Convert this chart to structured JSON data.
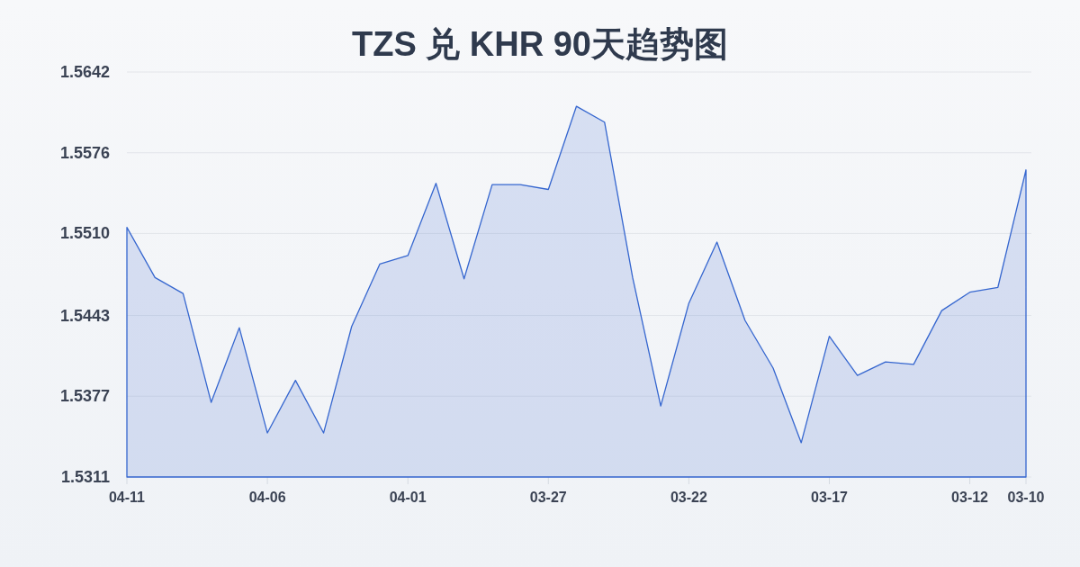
{
  "chart_data": {
    "type": "area",
    "title": "TZS 兑 KHR 90天趋势图",
    "categories": [
      "04-11",
      null,
      null,
      null,
      null,
      "04-06",
      null,
      null,
      null,
      null,
      "04-01",
      null,
      null,
      null,
      null,
      "03-27",
      null,
      null,
      null,
      null,
      "03-22",
      null,
      null,
      null,
      null,
      "03-17",
      null,
      null,
      null,
      null,
      "03-12",
      null,
      "03-10"
    ],
    "values": [
      1.5515,
      1.5474,
      1.5461,
      1.5372,
      1.5433,
      1.5347,
      1.539,
      1.5347,
      1.5434,
      1.5485,
      1.5492,
      1.5551,
      1.5473,
      1.555,
      1.555,
      1.5546,
      1.5614,
      1.5601,
      1.5474,
      1.5369,
      1.5453,
      1.5503,
      1.5439,
      1.54,
      1.5339,
      1.5426,
      1.5394,
      1.5405,
      1.5403,
      1.5447,
      1.5462,
      1.5466,
      1.5562
    ],
    "color": "#3566cf",
    "ylim": [
      1.5311,
      1.5642
    ],
    "yticks": [
      1.5311,
      1.5377,
      1.5443,
      {
        "value": 1.551,
        "label": "1.5510"
      },
      1.5576,
      1.5642
    ],
    "grid": "y"
  }
}
